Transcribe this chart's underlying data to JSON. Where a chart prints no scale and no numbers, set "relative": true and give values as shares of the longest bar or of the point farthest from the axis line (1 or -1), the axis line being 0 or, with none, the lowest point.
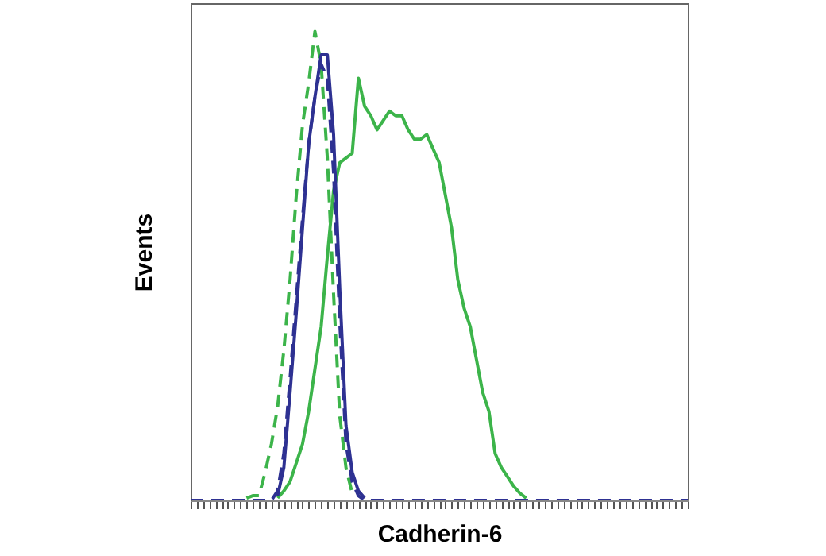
{
  "chart_data": {
    "type": "line",
    "relative": true,
    "xlabel": "Cadherin-6",
    "ylabel": "Events",
    "categories": [
      null,
      null,
      null,
      null,
      null,
      null,
      null,
      null,
      null,
      null,
      null,
      null,
      null,
      null,
      null,
      null,
      null,
      null,
      null,
      null,
      null,
      null,
      null,
      null,
      null,
      null,
      null,
      null,
      null,
      null,
      null,
      null,
      null,
      null,
      null,
      null,
      null,
      null,
      null,
      null,
      null,
      null,
      null,
      null,
      null,
      null,
      null,
      null,
      null,
      null,
      null,
      null,
      null,
      null,
      null,
      null,
      null,
      null,
      null,
      null,
      null,
      null,
      null,
      null,
      null,
      null,
      null,
      null,
      null,
      null,
      null,
      null,
      null,
      null,
      null,
      null,
      null,
      null,
      null,
      null,
      null
    ],
    "series": [
      {
        "color": "#3cb44a",
        "line_style": "solid",
        "values": [
          null,
          null,
          null,
          null,
          null,
          null,
          null,
          null,
          null,
          null,
          null,
          null,
          null,
          null,
          0.005,
          0.02,
          0.04,
          0.08,
          0.12,
          0.19,
          0.28,
          0.37,
          0.52,
          0.66,
          0.72,
          0.73,
          0.74,
          0.9,
          0.84,
          0.82,
          0.79,
          0.81,
          0.83,
          0.82,
          0.82,
          0.79,
          0.77,
          0.77,
          0.78,
          0.75,
          0.72,
          0.65,
          0.58,
          0.47,
          0.41,
          0.37,
          0.3,
          0.23,
          0.19,
          0.1,
          0.07,
          0.05,
          0.03,
          0.015,
          0.005,
          null,
          null,
          null,
          null,
          null,
          null,
          null,
          null,
          null,
          null,
          null,
          null,
          null,
          null,
          null,
          null,
          null,
          null,
          null,
          null,
          null,
          null,
          null,
          null,
          null,
          null
        ]
      },
      {
        "color": "#3cb44a",
        "line_style": "dashed",
        "values": [
          null,
          null,
          null,
          null,
          null,
          null,
          null,
          null,
          null,
          0.005,
          0.01,
          0.01,
          0.06,
          0.12,
          0.2,
          0.32,
          0.47,
          0.65,
          0.8,
          0.89,
          1.0,
          0.93,
          0.73,
          0.44,
          0.18,
          0.07,
          0.015,
          null,
          null,
          null,
          null,
          null,
          null,
          null,
          null,
          null,
          null,
          null,
          null,
          null,
          null,
          null,
          null,
          null,
          null,
          null,
          null,
          null,
          null,
          null,
          null,
          null,
          null,
          null,
          null,
          null,
          null,
          null,
          null,
          null,
          null,
          null,
          null,
          null,
          null,
          null,
          null,
          null,
          null,
          null,
          null,
          null,
          null,
          null,
          null,
          null,
          null,
          null,
          null,
          null,
          null
        ]
      },
      {
        "color": "#2e3192",
        "line_style": "solid",
        "values": [
          null,
          null,
          null,
          null,
          null,
          null,
          null,
          null,
          null,
          null,
          null,
          null,
          null,
          null,
          0.01,
          0.07,
          0.23,
          0.4,
          0.58,
          0.76,
          0.86,
          0.95,
          0.95,
          0.78,
          0.45,
          0.16,
          0.06,
          0.02,
          0.005,
          null,
          null,
          null,
          null,
          null,
          null,
          null,
          null,
          null,
          null,
          null,
          null,
          null,
          null,
          null,
          null,
          null,
          null,
          null,
          null,
          null,
          null,
          null,
          null,
          null,
          null,
          null,
          null,
          null,
          null,
          null,
          null,
          null,
          null,
          null,
          null,
          null,
          null,
          null,
          null,
          null,
          null,
          null,
          null,
          null,
          null,
          null,
          null,
          null,
          null,
          null,
          null
        ]
      },
      {
        "color": "#2e3192",
        "line_style": "dashed",
        "values": [
          0,
          0,
          0,
          0,
          0,
          0,
          0,
          0,
          0,
          0,
          0,
          0,
          0,
          0,
          0.02,
          0.1,
          0.26,
          0.43,
          0.6,
          0.76,
          0.86,
          0.93,
          0.9,
          0.7,
          0.38,
          0.12,
          0.04,
          0.01,
          0,
          0,
          0,
          0,
          0,
          0,
          0,
          0,
          0,
          0,
          0,
          0,
          0,
          0,
          0,
          0,
          0,
          0,
          0,
          0,
          0,
          0,
          0,
          0,
          0,
          0,
          0,
          0,
          0,
          0,
          0,
          0,
          0,
          0,
          0,
          0,
          0,
          0,
          0,
          0,
          0,
          0,
          0,
          0,
          0,
          0,
          0,
          0,
          0,
          0,
          0,
          0,
          0
        ]
      }
    ]
  }
}
